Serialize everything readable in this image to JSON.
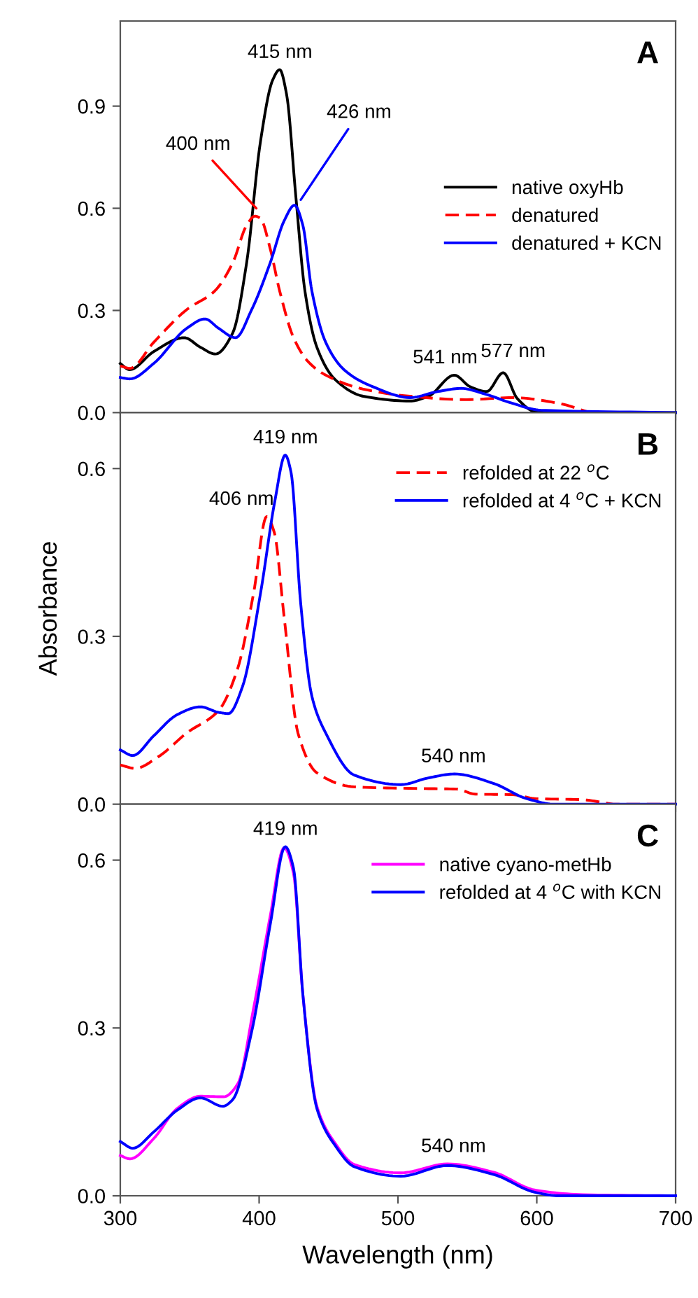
{
  "chart_data": [
    {
      "type": "line",
      "title": "A",
      "xlim": [
        300,
        700
      ],
      "ylim": [
        0,
        1.15
      ],
      "xticks": [
        300,
        400,
        500,
        600,
        700
      ],
      "yticks": [
        {
          "value": 0,
          "label": "0.0"
        },
        {
          "value": 0.3,
          "label": "0.3"
        },
        {
          "value": 0.6,
          "label": "0.6"
        },
        {
          "value": 0.9,
          "label": "0.9"
        }
      ],
      "tick_labels": "y",
      "legend": "right",
      "grid": false,
      "series": [
        {
          "name": "native oxyHb",
          "color": "#000000",
          "line_style": "solid",
          "x": [
            300,
            306.7,
            324,
            346,
            357.7,
            368.5,
            381,
            391,
            401,
            409.7,
            414.8,
            419.8,
            426.5,
            433,
            441.6,
            455,
            475,
            508.7,
            522,
            540.6,
            552,
            564,
            575.8,
            586,
            599,
            616,
            700
          ],
          "values": [
            0.144,
            0.126,
            0.179,
            0.22,
            0.192,
            0.172,
            0.234,
            0.44,
            0.797,
            0.976,
            1.007,
            0.934,
            0.632,
            0.357,
            0.192,
            0.096,
            0.048,
            0.034,
            0.048,
            0.11,
            0.076,
            0.062,
            0.117,
            0.041,
            0.003,
            0,
            0
          ]
        },
        {
          "name": "denatured",
          "color": "#ff0000",
          "line_style": "dashed",
          "x": [
            300,
            307,
            324,
            347.7,
            368,
            381,
            391,
            397,
            401,
            408,
            414.8,
            424.8,
            435,
            448,
            475,
            508.7,
            549,
            582.6,
            616,
            636
          ],
          "values": [
            0.137,
            0.13,
            0.206,
            0.302,
            0.357,
            0.44,
            0.55,
            0.577,
            0.57,
            0.481,
            0.357,
            0.22,
            0.151,
            0.11,
            0.069,
            0.048,
            0.038,
            0.044,
            0.027,
            0.003
          ]
        },
        {
          "name": "denatured + KCN",
          "color": "#0000ff",
          "line_style": "solid",
          "x": [
            300,
            307,
            324,
            347.7,
            361,
            371,
            383,
            394.6,
            408,
            418,
            425.5,
            431.5,
            438,
            448,
            461.7,
            481.9,
            508.7,
            528.9,
            545.6,
            562.4,
            582.6,
            602.7,
            700
          ],
          "values": [
            0.103,
            0.099,
            0.144,
            0.247,
            0.275,
            0.247,
            0.22,
            0.302,
            0.44,
            0.563,
            0.609,
            0.55,
            0.357,
            0.206,
            0.124,
            0.076,
            0.044,
            0.062,
            0.071,
            0.055,
            0.027,
            0.007,
            0
          ]
        }
      ],
      "annotations": [
        {
          "text": "415 nm",
          "x": 415,
          "y": 1.007
        },
        {
          "text": "400 nm",
          "x": 398,
          "y": 0.6
        },
        {
          "text": "426 nm",
          "x": 430,
          "y": 0.625
        },
        {
          "text": "541 nm",
          "x": 541,
          "y": 0.11
        },
        {
          "text": "577 nm",
          "x": 576,
          "y": 0.117
        }
      ]
    },
    {
      "type": "line",
      "title": "B",
      "ylabel": "Absorbance",
      "xlim": [
        300,
        700
      ],
      "ylim": [
        0,
        0.7
      ],
      "xticks": [
        300,
        400,
        500,
        600,
        700
      ],
      "yticks": [
        {
          "value": 0,
          "label": "0.0"
        },
        {
          "value": 0.3,
          "label": "0.3"
        },
        {
          "value": 0.6,
          "label": "0.6"
        }
      ],
      "tick_labels": "y",
      "legend": "top right",
      "grid": false,
      "series": [
        {
          "name": "refolded at 22 $^{o}$C",
          "color": "#ff0000",
          "line_style": "dashed",
          "x": [
            300,
            310.7,
            327.5,
            347.7,
            371,
            384.6,
            396,
            405.4,
            411,
            418,
            428,
            441.6,
            468.5,
            515.4,
            542,
            555.7,
            582.6,
            599,
            633,
            650,
            656,
            700
          ],
          "values": [
            0.07,
            0.064,
            0.085,
            0.127,
            0.168,
            0.243,
            0.377,
            0.514,
            0.485,
            0.335,
            0.127,
            0.056,
            0.031,
            0.028,
            0.027,
            0.018,
            0.017,
            0.01,
            0.008,
            0.002,
            0,
            0
          ]
        },
        {
          "name": "refolded at 4 $^{o}$C + KCN",
          "color": "#0000ff",
          "line_style": "solid",
          "x": [
            300,
            309,
            324,
            341,
            357.7,
            371,
            377.9,
            388,
            401,
            411.4,
            418.8,
            423,
            429.9,
            438,
            448,
            468.5,
            502,
            522,
            540.6,
            569,
            592.6,
            612.8,
            700
          ],
          "values": [
            0.097,
            0.087,
            0.122,
            0.16,
            0.174,
            0.164,
            0.162,
            0.21,
            0.377,
            0.543,
            0.624,
            0.593,
            0.36,
            0.193,
            0.127,
            0.052,
            0.035,
            0.047,
            0.054,
            0.037,
            0.01,
            0,
            0
          ]
        }
      ],
      "annotations": [
        {
          "text": "419 nm",
          "x": 419,
          "y": 0.624
        },
        {
          "text": "406 nm",
          "x": 405,
          "y": 0.514
        },
        {
          "text": "540 nm",
          "x": 540,
          "y": 0.054
        }
      ]
    },
    {
      "type": "line",
      "title": "C",
      "xlabel": "Wavelength (nm)",
      "xlim": [
        300,
        700
      ],
      "ylim": [
        0,
        0.7
      ],
      "xticks": [
        300,
        400,
        500,
        600,
        700
      ],
      "yticks": [
        {
          "value": 0,
          "label": "0.0"
        },
        {
          "value": 0.3,
          "label": "0.3"
        },
        {
          "value": 0.6,
          "label": "0.6"
        }
      ],
      "legend": "top right",
      "grid": false,
      "series": [
        {
          "name": "native cyano-metHb",
          "color": "#ff00ff",
          "line_style": "solid",
          "x": [
            300,
            307,
            324,
            341,
            357.7,
            374.5,
            384.6,
            396,
            408,
            418,
            424.8,
            431.5,
            441.6,
            455,
            468.5,
            502,
            535.6,
            569,
            599,
            633,
            700
          ],
          "values": [
            0.072,
            0.066,
            0.102,
            0.156,
            0.178,
            0.177,
            0.2,
            0.335,
            0.5,
            0.622,
            0.576,
            0.36,
            0.16,
            0.093,
            0.056,
            0.041,
            0.057,
            0.042,
            0.01,
            0.002,
            0
          ]
        },
        {
          "name": "refolded at 4 $^{o}$C with KCN",
          "color": "#0000ff",
          "line_style": "solid",
          "x": [
            300,
            309,
            324,
            341,
            357.7,
            373.8,
            381,
            394.6,
            408,
            418.8,
            424.8,
            431.5,
            441.6,
            455,
            468.5,
            502,
            535.6,
            569,
            599,
            616,
            700
          ],
          "values": [
            0.097,
            0.085,
            0.114,
            0.153,
            0.175,
            0.16,
            0.172,
            0.293,
            0.485,
            0.624,
            0.585,
            0.36,
            0.156,
            0.089,
            0.052,
            0.035,
            0.054,
            0.038,
            0.006,
            0,
            0
          ]
        }
      ],
      "annotations": [
        {
          "text": "419 nm",
          "x": 419,
          "y": 0.624
        },
        {
          "text": "540 nm",
          "x": 540,
          "y": 0.057
        }
      ]
    }
  ]
}
